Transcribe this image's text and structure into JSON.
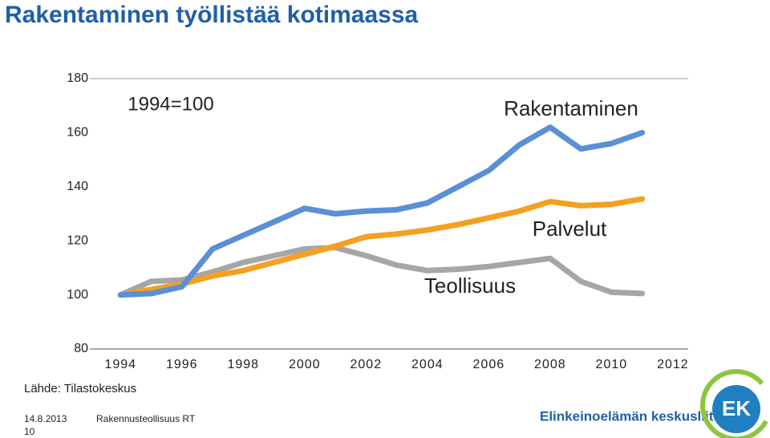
{
  "chart_data": {
    "type": "line",
    "title": "Rakentaminen työllistää kotimaassa",
    "annotation": "1994=100",
    "x": [
      1994,
      1995,
      1996,
      1997,
      1998,
      1999,
      2000,
      2001,
      2002,
      2003,
      2004,
      2005,
      2006,
      2007,
      2008,
      2009,
      2010,
      2011
    ],
    "series": [
      {
        "name": "Teollisuus",
        "color": "#a6a6a6",
        "values": [
          100,
          105,
          105.5,
          108.5,
          112,
          114.5,
          117,
          117.5,
          114.5,
          111,
          109,
          109.5,
          110.5,
          112,
          113.5,
          105,
          101,
          100.5
        ]
      },
      {
        "name": "Palvelut",
        "color": "#f4a020",
        "values": [
          100,
          102,
          104,
          107,
          109,
          112,
          115,
          118,
          121.5,
          122.5,
          124,
          126,
          128.5,
          131,
          134.5,
          133,
          133.5,
          135.5
        ]
      },
      {
        "name": "Rakentaminen",
        "color": "#5b8fd6",
        "values": [
          100,
          100.5,
          103,
          117,
          122,
          127,
          132,
          130,
          131,
          131.5,
          134,
          140,
          146,
          155.5,
          162,
          154,
          156,
          160
        ]
      }
    ],
    "xlim": [
      1993,
      2012.5
    ],
    "xticks": [
      1994,
      1996,
      1998,
      2000,
      2002,
      2004,
      2006,
      2008,
      2010,
      2012
    ],
    "ylim": [
      80,
      180
    ],
    "yticks": [
      80,
      100,
      120,
      140,
      160,
      180
    ],
    "source": "Lähde: Tilastokeskus"
  },
  "footer": {
    "date": "14.8.2013",
    "organization": "Rakennusteollisuus RT",
    "page": "10",
    "logo_text": "Elinkeinoelämän keskusliitto",
    "logo_mark": "EK"
  }
}
